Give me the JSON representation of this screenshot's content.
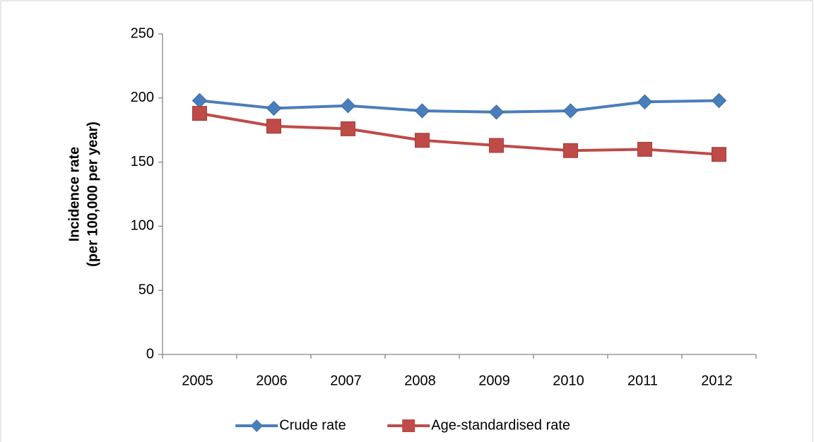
{
  "chart_data": {
    "type": "line",
    "ylabel": [
      "Incidence rate",
      "(per 100,000 per year)"
    ],
    "categories": [
      "2005",
      "2006",
      "2007",
      "2008",
      "2009",
      "2010",
      "2011",
      "2012"
    ],
    "series": [
      {
        "name": "Crude rate",
        "color": "#4a7ebb",
        "marker": "diamond",
        "values": [
          198,
          192,
          194,
          190,
          189,
          190,
          197,
          198
        ]
      },
      {
        "name": "Age-standardised rate",
        "color": "#be4b48",
        "marker": "square",
        "values": [
          188,
          178,
          176,
          167,
          163,
          159,
          160,
          156
        ]
      }
    ],
    "ylim": [
      0,
      250
    ],
    "yticks": [
      0,
      50,
      100,
      150,
      200,
      250
    ],
    "grid": false,
    "legend": "bottom"
  }
}
